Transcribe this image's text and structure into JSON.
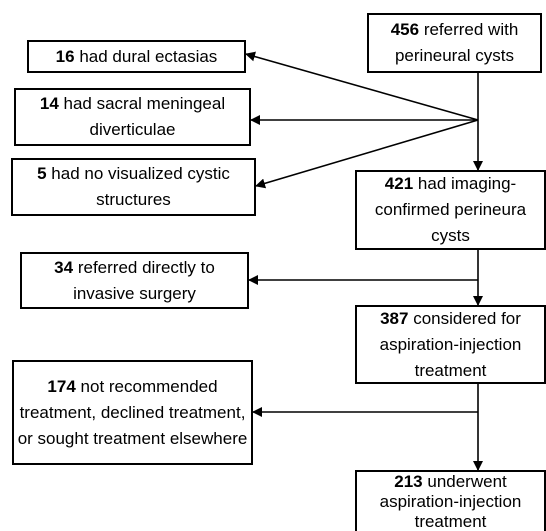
{
  "nodes": [
    {
      "count": 456,
      "text": "referred with perineural cysts"
    },
    {
      "count": 16,
      "text": "had dural ectasias"
    },
    {
      "count": 14,
      "text": "had sacral meningeal diverticulae"
    },
    {
      "count": 5,
      "text": "had no visualized cystic structures"
    },
    {
      "count": 421,
      "text": "had imaging-confirmed perineura cysts"
    },
    {
      "count": 34,
      "text": "referred directly to invasive surgery"
    },
    {
      "count": 387,
      "text": "considered for aspiration-injection treatment"
    },
    {
      "count": 174,
      "text": "not recommended treatment, declined treatment, or sought treatment elsewhere"
    },
    {
      "count": 213,
      "text": "underwent aspiration-injection treatment"
    }
  ]
}
